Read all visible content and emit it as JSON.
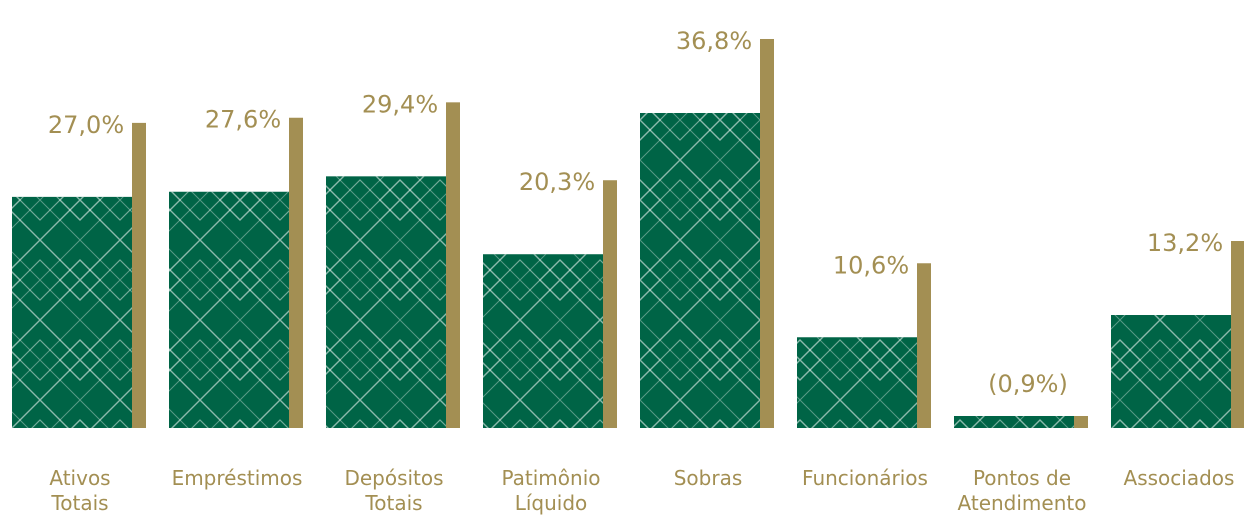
{
  "chart_data": {
    "type": "bar",
    "categories": [
      [
        "Ativos",
        "Totais"
      ],
      [
        "Empréstimos"
      ],
      [
        "Depósitos",
        "Totais"
      ],
      [
        "Patimônio",
        "Líquido"
      ],
      [
        "Sobras"
      ],
      [
        "Funcionários"
      ],
      [
        "Pontos de",
        "Atendimento"
      ],
      [
        "Associados"
      ]
    ],
    "values": [
      27.0,
      27.6,
      29.4,
      20.3,
      36.8,
      10.6,
      -0.9,
      13.2
    ],
    "value_labels": [
      "27,0%",
      "27,6%",
      "29,4%",
      "20,3%",
      "36,8%",
      "10,6%",
      "(0,9%)",
      "13,2%"
    ],
    "title": "",
    "xlabel": "",
    "ylabel": "",
    "colors": {
      "bar": "#006446",
      "accent": "#a38f53",
      "pattern": "#ffffff"
    }
  }
}
